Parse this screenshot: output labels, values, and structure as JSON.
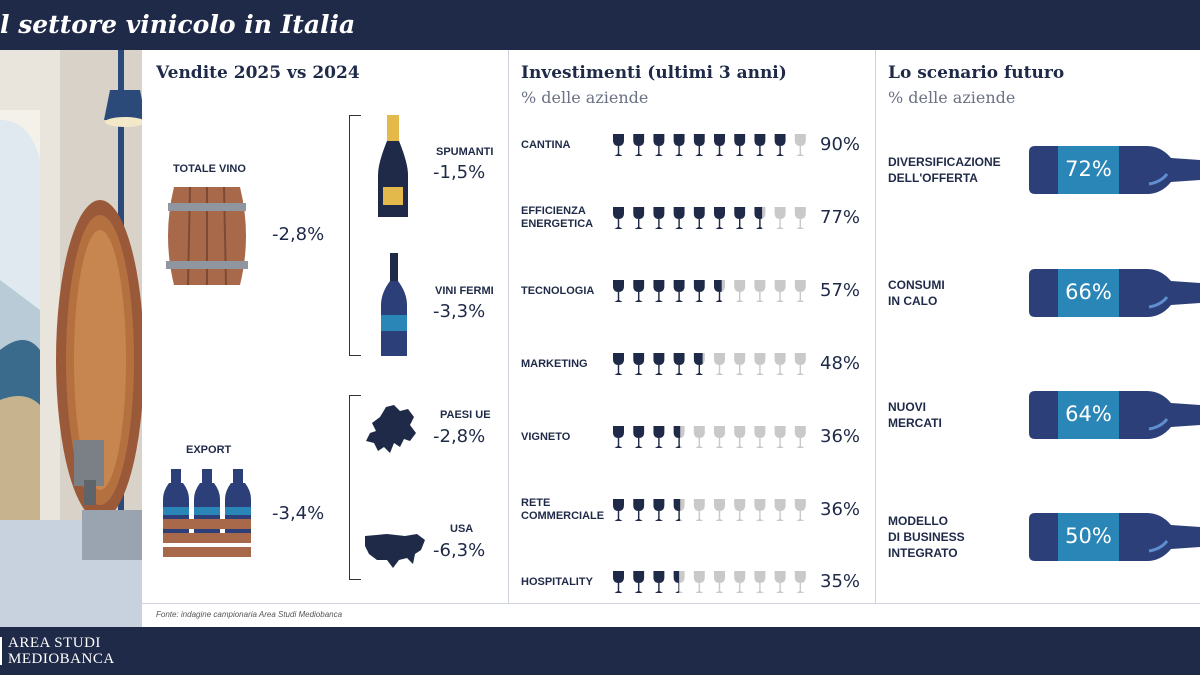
{
  "header": {
    "title": "l settore vinicolo in Italia"
  },
  "footer": {
    "brand_line1": "AREA STUDI",
    "brand_line2": "MEDIOBANCA",
    "source": "Fonte: indagine campionaria Area Studi Mediobanca"
  },
  "colors": {
    "navy": "#1f2a48",
    "accent": "#2a86b7",
    "grey": "#c9c9c9",
    "barrel": "#9a5a3a"
  },
  "icons": [
    "barrel-icon",
    "wine-crate-icon",
    "spumante-bottle-icon",
    "wine-bottle-icon",
    "europe-map-icon",
    "usa-map-icon",
    "wine-glass-icon"
  ],
  "chart_data": [
    {
      "type": "table",
      "title": "Vendite 2025 vs 2024",
      "groups": [
        {
          "label": "TOTALE VINO",
          "value": "-2,8%",
          "breakdown": [
            {
              "label": "SPUMANTI",
              "value": "-1,5%"
            },
            {
              "label": "VINI FERMI",
              "value": "-3,3%"
            }
          ]
        },
        {
          "label": "EXPORT",
          "value": "-3,4%",
          "breakdown": [
            {
              "label": "PAESI UE",
              "value": "-2,8%"
            },
            {
              "label": "USA",
              "value": "-6,3%"
            }
          ]
        }
      ]
    },
    {
      "type": "bar",
      "title": "Investimenti (ultimi 3 anni)",
      "subtitle": "% delle aziende",
      "categories": [
        "CANTINA",
        "EFFICIENZA ENERGETICA",
        "TECNOLOGIA",
        "MARKETING",
        "VIGNETO",
        "RETE COMMERCIALE",
        "HOSPITALITY"
      ],
      "values": [
        90,
        77,
        57,
        48,
        36,
        36,
        35
      ],
      "labels": [
        "90%",
        "77%",
        "57%",
        "48%",
        "36%",
        "36%",
        "35%"
      ],
      "ylim": [
        0,
        100
      ]
    },
    {
      "type": "bar",
      "title": "Lo scenario futuro",
      "subtitle": "% delle aziende",
      "categories": [
        "DIVERSIFICAZIONE DELL'OFFERTA",
        "CONSUMI IN CALO",
        "NUOVI MERCATI",
        "MODELLO DI BUSINESS INTEGRATO"
      ],
      "values": [
        72,
        66,
        64,
        50
      ],
      "labels": [
        "72%",
        "66%",
        "64%",
        "50%"
      ]
    }
  ]
}
